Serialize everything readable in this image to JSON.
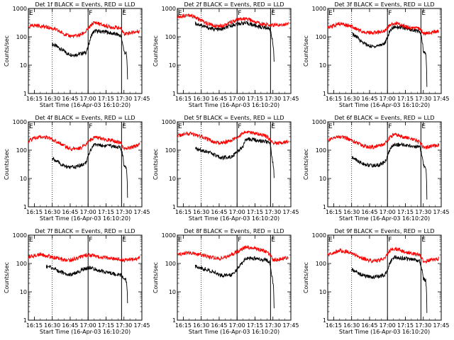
{
  "figure": {
    "xlabel": "Start Time (16-Apr-03 16:10:20)",
    "ylabel": "Counts/sec",
    "time_ticks": [
      "16:15",
      "16:30",
      "16:45",
      "17:00",
      "17:15",
      "17:30",
      "17:45"
    ],
    "y_ticks": [
      "1",
      "10",
      "100",
      "1000"
    ],
    "dotted_line_time": "16:30",
    "solid_line_times": [
      "17:00",
      "17:28"
    ],
    "line_letters": [
      "F",
      "E"
    ],
    "events_color": "#000000",
    "lld_color": "#ff0000"
  },
  "chart_data": [
    {
      "type": "line",
      "title": "Det 1f BLACK = Events, RED = LLD",
      "xlim_minutes": [
        0,
        95
      ],
      "ylim": [
        1,
        1000
      ],
      "yscale": "log",
      "series": [
        {
          "name": "Events",
          "x_minutes": [
            20,
            24,
            28,
            33,
            38,
            43,
            48,
            50,
            52,
            54,
            56,
            60,
            65,
            70,
            75,
            77,
            80,
            82,
            83
          ],
          "values": [
            55,
            45,
            35,
            25,
            23,
            25,
            28,
            40,
            90,
            140,
            160,
            155,
            150,
            130,
            120,
            110,
            30,
            25,
            3
          ]
        },
        {
          "name": "LLD",
          "x_minutes": [
            0,
            5,
            10,
            15,
            20,
            24,
            28,
            33,
            38,
            43,
            48,
            50,
            52,
            54,
            56,
            60,
            65,
            70,
            75,
            77,
            80,
            85,
            90,
            93
          ],
          "values": [
            220,
            260,
            240,
            220,
            200,
            170,
            140,
            110,
            105,
            115,
            150,
            190,
            240,
            300,
            320,
            280,
            240,
            220,
            210,
            200,
            130,
            140,
            150,
            160
          ]
        }
      ]
    },
    {
      "type": "line",
      "title": "Det 2f BLACK = Events, RED = LLD",
      "xlim_minutes": [
        0,
        95
      ],
      "ylim": [
        1,
        1000
      ],
      "yscale": "log",
      "series": [
        {
          "name": "Events",
          "x_minutes": [
            15,
            20,
            25,
            30,
            35,
            40,
            45,
            50,
            55,
            60,
            65,
            70,
            75,
            77,
            79,
            81
          ],
          "values": [
            300,
            260,
            210,
            190,
            180,
            200,
            250,
            280,
            310,
            290,
            250,
            220,
            210,
            200,
            100,
            15
          ]
        },
        {
          "name": "LLD",
          "x_minutes": [
            0,
            5,
            10,
            15,
            20,
            25,
            30,
            35,
            40,
            45,
            50,
            55,
            60,
            65,
            70,
            75,
            80,
            85,
            90,
            93
          ],
          "values": [
            500,
            560,
            600,
            480,
            380,
            290,
            250,
            240,
            270,
            330,
            390,
            430,
            400,
            340,
            290,
            270,
            260,
            260,
            280,
            300
          ]
        }
      ]
    },
    {
      "type": "line",
      "title": "Det 3f BLACK = Events, RED = LLD",
      "xlim_minutes": [
        0,
        95
      ],
      "ylim": [
        1,
        1000
      ],
      "yscale": "log",
      "series": [
        {
          "name": "Events",
          "x_minutes": [
            20,
            24,
            28,
            33,
            38,
            43,
            48,
            50,
            52,
            54,
            56,
            60,
            65,
            70,
            75,
            77,
            80,
            82,
            83
          ],
          "values": [
            130,
            100,
            70,
            50,
            45,
            50,
            60,
            90,
            160,
            200,
            230,
            220,
            200,
            180,
            160,
            150,
            30,
            25,
            2
          ]
        },
        {
          "name": "LLD",
          "x_minutes": [
            0,
            5,
            10,
            15,
            20,
            24,
            28,
            33,
            38,
            43,
            48,
            50,
            52,
            54,
            56,
            60,
            65,
            70,
            75,
            77,
            80,
            85,
            90,
            93
          ],
          "values": [
            200,
            250,
            290,
            270,
            230,
            190,
            160,
            140,
            140,
            150,
            170,
            210,
            250,
            280,
            300,
            270,
            230,
            210,
            200,
            190,
            130,
            140,
            150,
            160
          ]
        }
      ]
    },
    {
      "type": "line",
      "title": "Det 4f BLACK = Events, RED = LLD",
      "xlim_minutes": [
        0,
        95
      ],
      "ylim": [
        1,
        1000
      ],
      "yscale": "log",
      "series": [
        {
          "name": "Events",
          "x_minutes": [
            20,
            24,
            28,
            33,
            38,
            43,
            48,
            50,
            52,
            54,
            56,
            60,
            65,
            70,
            75,
            77,
            80,
            82,
            83
          ],
          "values": [
            50,
            40,
            30,
            25,
            25,
            28,
            35,
            55,
            100,
            140,
            160,
            150,
            140,
            140,
            130,
            120,
            30,
            25,
            2
          ]
        },
        {
          "name": "LLD",
          "x_minutes": [
            0,
            5,
            10,
            15,
            20,
            24,
            28,
            33,
            38,
            43,
            48,
            50,
            52,
            54,
            56,
            60,
            65,
            70,
            75,
            77,
            80,
            85,
            90,
            93
          ],
          "values": [
            210,
            260,
            300,
            280,
            240,
            200,
            160,
            120,
            110,
            120,
            150,
            190,
            240,
            270,
            280,
            260,
            240,
            220,
            200,
            190,
            110,
            120,
            140,
            160
          ]
        }
      ]
    },
    {
      "type": "line",
      "title": "Det 5f BLACK = Events, RED = LLD",
      "xlim_minutes": [
        0,
        95
      ],
      "ylim": [
        1,
        1000
      ],
      "yscale": "log",
      "series": [
        {
          "name": "Events",
          "x_minutes": [
            15,
            20,
            25,
            30,
            35,
            40,
            45,
            50,
            55,
            57,
            60,
            65,
            70,
            75,
            77,
            79,
            81
          ],
          "values": [
            110,
            100,
            90,
            70,
            55,
            55,
            60,
            80,
            130,
            220,
            240,
            230,
            210,
            200,
            190,
            60,
            10
          ]
        },
        {
          "name": "LLD",
          "x_minutes": [
            0,
            5,
            10,
            15,
            20,
            25,
            30,
            35,
            40,
            45,
            50,
            55,
            57,
            60,
            65,
            70,
            75,
            80,
            85,
            90,
            93
          ],
          "values": [
            320,
            350,
            380,
            340,
            300,
            250,
            200,
            180,
            190,
            220,
            280,
            380,
            450,
            430,
            400,
            360,
            300,
            170,
            180,
            190,
            210
          ]
        }
      ]
    },
    {
      "type": "line",
      "title": "Det 6f BLACK = Events, RED = LLD",
      "xlim_minutes": [
        0,
        95
      ],
      "ylim": [
        1,
        1000
      ],
      "yscale": "log",
      "series": [
        {
          "name": "Events",
          "x_minutes": [
            20,
            24,
            28,
            33,
            38,
            43,
            48,
            50,
            52,
            54,
            56,
            60,
            65,
            70,
            75,
            77,
            80,
            82,
            83
          ],
          "values": [
            55,
            45,
            35,
            30,
            28,
            30,
            38,
            60,
            100,
            140,
            160,
            155,
            150,
            140,
            130,
            120,
            30,
            25,
            2
          ]
        },
        {
          "name": "LLD",
          "x_minutes": [
            0,
            5,
            10,
            15,
            20,
            24,
            28,
            33,
            38,
            43,
            48,
            50,
            52,
            54,
            56,
            60,
            65,
            70,
            75,
            77,
            80,
            85,
            90,
            93
          ],
          "values": [
            220,
            270,
            300,
            270,
            220,
            180,
            150,
            130,
            130,
            140,
            170,
            220,
            280,
            330,
            350,
            320,
            280,
            240,
            210,
            190,
            120,
            130,
            140,
            150
          ]
        }
      ]
    },
    {
      "type": "line",
      "title": "Det 7f BLACK = Events, RED = LLD",
      "xlim_minutes": [
        0,
        95
      ],
      "ylim": [
        1,
        1000
      ],
      "yscale": "log",
      "series": [
        {
          "name": "Events",
          "x_minutes": [
            15,
            20,
            25,
            30,
            35,
            40,
            45,
            50,
            55,
            60,
            65,
            70,
            75,
            77,
            80,
            82,
            83
          ],
          "values": [
            80,
            70,
            55,
            45,
            40,
            45,
            60,
            70,
            65,
            55,
            50,
            45,
            40,
            40,
            30,
            25,
            4
          ]
        },
        {
          "name": "LLD",
          "x_minutes": [
            0,
            5,
            10,
            15,
            20,
            25,
            30,
            35,
            40,
            45,
            50,
            55,
            60,
            65,
            70,
            75,
            80,
            85,
            90,
            93
          ],
          "values": [
            170,
            190,
            210,
            190,
            170,
            150,
            130,
            130,
            150,
            180,
            200,
            190,
            170,
            160,
            150,
            140,
            130,
            140,
            150,
            160
          ]
        }
      ]
    },
    {
      "type": "line",
      "title": "Det 8f BLACK = Events, RED = LLD",
      "xlim_minutes": [
        0,
        95
      ],
      "ylim": [
        1,
        1000
      ],
      "yscale": "log",
      "series": [
        {
          "name": "Events",
          "x_minutes": [
            15,
            20,
            25,
            30,
            35,
            40,
            45,
            50,
            55,
            57,
            60,
            65,
            70,
            75,
            77,
            79,
            81
          ],
          "values": [
            80,
            70,
            60,
            50,
            40,
            38,
            40,
            60,
            110,
            150,
            160,
            150,
            140,
            130,
            120,
            40,
            3
          ]
        },
        {
          "name": "LLD",
          "x_minutes": [
            0,
            5,
            10,
            15,
            20,
            25,
            30,
            35,
            40,
            45,
            50,
            55,
            57,
            60,
            65,
            70,
            75,
            80,
            85,
            90,
            93
          ],
          "values": [
            200,
            220,
            240,
            220,
            200,
            180,
            160,
            150,
            160,
            200,
            260,
            330,
            380,
            360,
            330,
            300,
            260,
            130,
            140,
            150,
            160
          ]
        }
      ]
    },
    {
      "type": "line",
      "title": "Det 9f BLACK = Events, RED = LLD",
      "xlim_minutes": [
        0,
        95
      ],
      "ylim": [
        1,
        1000
      ],
      "yscale": "log",
      "series": [
        {
          "name": "Events",
          "x_minutes": [
            20,
            24,
            28,
            33,
            38,
            43,
            48,
            50,
            52,
            54,
            56,
            60,
            65,
            70,
            75,
            77,
            80,
            82,
            83
          ],
          "values": [
            60,
            50,
            40,
            35,
            33,
            35,
            40,
            60,
            100,
            150,
            170,
            160,
            150,
            140,
            130,
            120,
            30,
            25,
            2
          ]
        },
        {
          "name": "LLD",
          "x_minutes": [
            0,
            5,
            10,
            15,
            20,
            24,
            28,
            33,
            38,
            43,
            48,
            50,
            52,
            54,
            56,
            60,
            65,
            70,
            75,
            77,
            80,
            85,
            90,
            93
          ],
          "values": [
            200,
            250,
            290,
            270,
            230,
            190,
            160,
            130,
            120,
            130,
            160,
            210,
            270,
            320,
            340,
            300,
            260,
            230,
            210,
            200,
            120,
            130,
            140,
            150
          ]
        }
      ]
    }
  ]
}
